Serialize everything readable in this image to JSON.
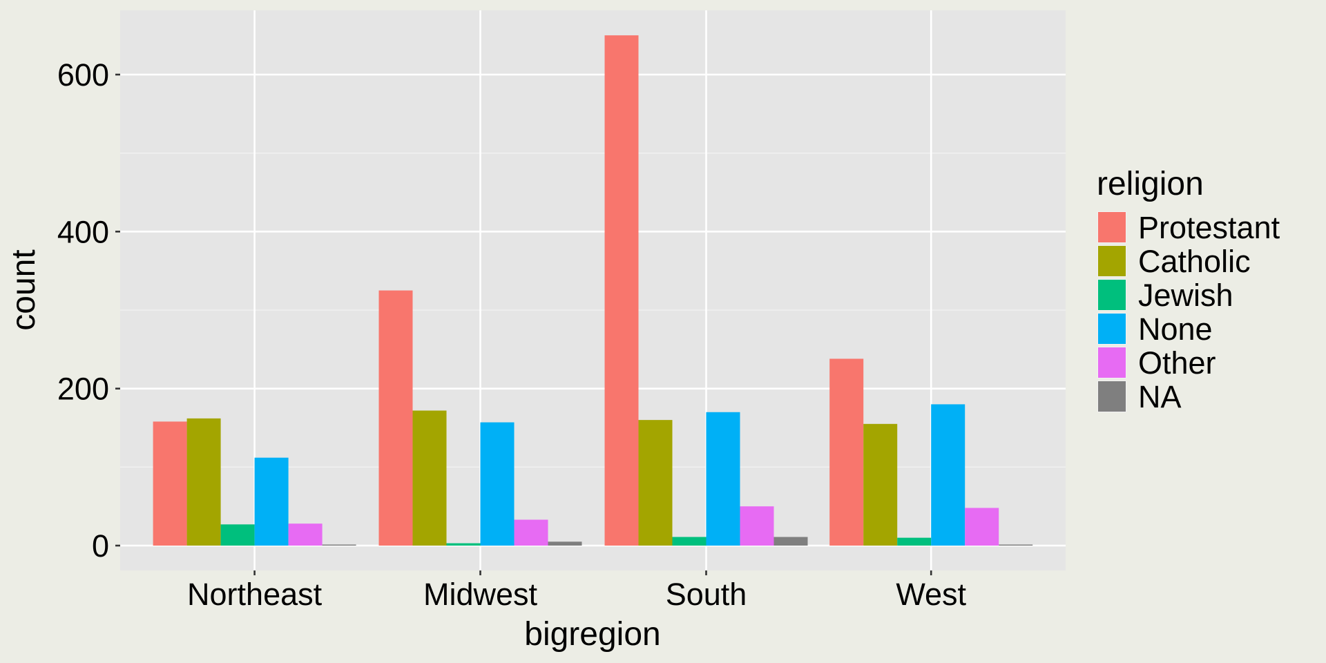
{
  "chart_data": {
    "type": "bar",
    "xlabel": "bigregion",
    "ylabel": "count",
    "ylim": [
      -40,
      680
    ],
    "yticks": [
      0,
      200,
      400,
      600
    ],
    "categories": [
      "Northeast",
      "Midwest",
      "South",
      "West"
    ],
    "legend": {
      "title": "religion",
      "placement": "right"
    },
    "series": [
      {
        "name": "Protestant",
        "color": "#F8766D",
        "values": [
          158,
          325,
          650,
          238
        ]
      },
      {
        "name": "Catholic",
        "color": "#A3A500",
        "values": [
          162,
          172,
          160,
          155
        ]
      },
      {
        "name": "Jewish",
        "color": "#00BF7D",
        "values": [
          27,
          3,
          11,
          10
        ]
      },
      {
        "name": "None",
        "color": "#00B0F6",
        "values": [
          112,
          157,
          170,
          180
        ]
      },
      {
        "name": "Other",
        "color": "#E76BF3",
        "values": [
          28,
          33,
          50,
          48
        ]
      },
      {
        "name": "NA",
        "color": "#7F7F7F",
        "values": [
          1,
          5,
          11,
          1
        ]
      }
    ]
  }
}
